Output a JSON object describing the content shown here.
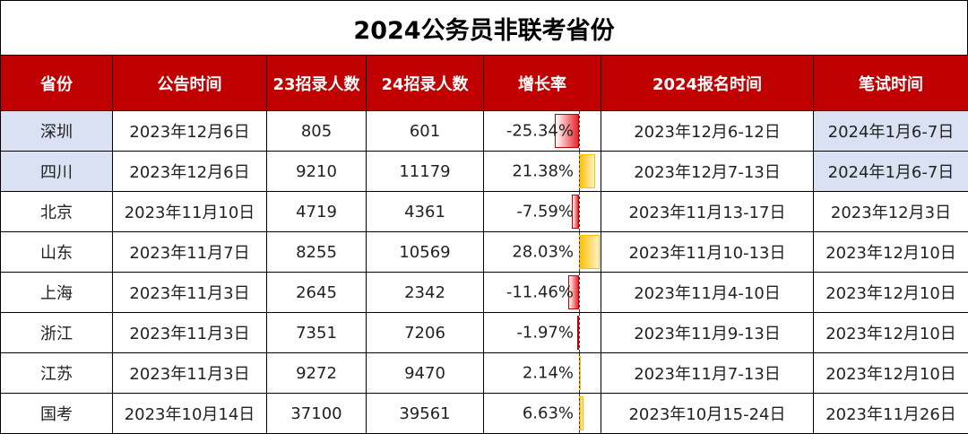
{
  "title": "2024公务员非联考省份",
  "headers": [
    "省份",
    "公告时间",
    "23招录人数",
    "24招录人数",
    "增长率",
    "2024报名时间",
    "笔试时间"
  ],
  "rows": [
    {
      "province": "深圳",
      "announce": "2023年12月6日",
      "recruit23": "805",
      "recruit24": "601",
      "growth": "-25.34%",
      "growth_value": -25.34,
      "register": "2023年12月6-12日",
      "exam": "2024年1月6-7日",
      "highlight": true
    },
    {
      "province": "四川",
      "announce": "2023年12月6日",
      "recruit23": "9210",
      "recruit24": "11179",
      "growth": "21.38%",
      "growth_value": 21.38,
      "register": "2023年12月7-13日",
      "exam": "2024年1月6-7日",
      "highlight": true
    },
    {
      "province": "北京",
      "announce": "2023年11月10日",
      "recruit23": "4719",
      "recruit24": "4361",
      "growth": "-7.59%",
      "growth_value": -7.59,
      "register": "2023年11月13-17日",
      "exam": "2023年12月3日",
      "highlight": false
    },
    {
      "province": "山东",
      "announce": "2023年11月7日",
      "recruit23": "8255",
      "recruit24": "10569",
      "growth": "28.03%",
      "growth_value": 28.03,
      "register": "2023年11月10-13日",
      "exam": "2023年12月10日",
      "highlight": false
    },
    {
      "province": "上海",
      "announce": "2023年11月3日",
      "recruit23": "2645",
      "recruit24": "2342",
      "growth": "-11.46%",
      "growth_value": -11.46,
      "register": "2023年11月4-10日",
      "exam": "2023年12月10日",
      "highlight": false
    },
    {
      "province": "浙江",
      "announce": "2023年11月3日",
      "recruit23": "7351",
      "recruit24": "7206",
      "growth": "-1.97%",
      "growth_value": -1.97,
      "register": "2023年11月9-13日",
      "exam": "2023年12月10日",
      "highlight": false
    },
    {
      "province": "江苏",
      "announce": "2023年11月3日",
      "recruit23": "9272",
      "recruit24": "9470",
      "growth": "2.14%",
      "growth_value": 2.14,
      "register": "2023年11月7-13日",
      "exam": "2023年12月10日",
      "highlight": false
    },
    {
      "province": "国考",
      "announce": "2023年10月14日",
      "recruit23": "37100",
      "recruit24": "39561",
      "growth": "6.63%",
      "growth_value": 6.63,
      "register": "2023年10月15-24日",
      "exam": "2023年11月26日",
      "highlight": false
    }
  ],
  "colors": {
    "header_bg": "#c00000",
    "highlight_bg": "#d9e1f2",
    "negative_bar": "#e8262c",
    "positive_bar": "#ffc000"
  }
}
